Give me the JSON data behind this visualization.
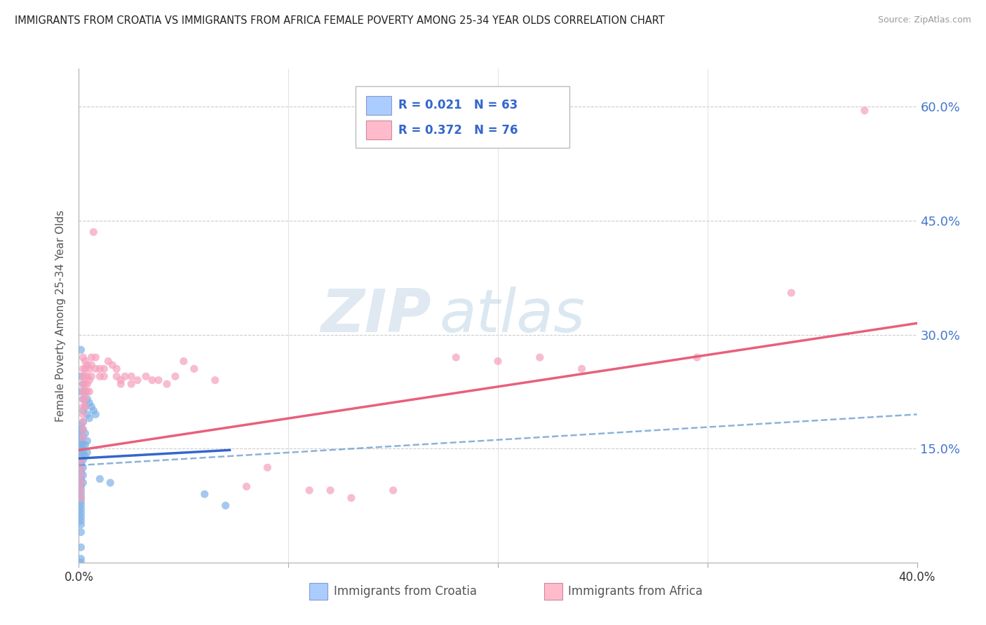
{
  "title": "IMMIGRANTS FROM CROATIA VS IMMIGRANTS FROM AFRICA FEMALE POVERTY AMONG 25-34 YEAR OLDS CORRELATION CHART",
  "source": "Source: ZipAtlas.com",
  "ylabel": "Female Poverty Among 25-34 Year Olds",
  "xlabel_croatia": "Immigrants from Croatia",
  "xlabel_africa": "Immigrants from Africa",
  "xlim": [
    0.0,
    0.4
  ],
  "ylim": [
    0.0,
    0.65
  ],
  "yticks": [
    0.0,
    0.15,
    0.3,
    0.45,
    0.6
  ],
  "ytick_labels": [
    "",
    "15.0%",
    "30.0%",
    "45.0%",
    "60.0%"
  ],
  "xticks": [
    0.0,
    0.1,
    0.2,
    0.3,
    0.4
  ],
  "croatia_color": "#7fb3e8",
  "africa_color": "#f5a0bc",
  "croatia_line_color": "#3366cc",
  "croatia_dash_color": "#6699cc",
  "africa_line_color": "#e8607a",
  "legend_croatia_color": "#aaccff",
  "legend_africa_color": "#ffbbcc",
  "watermark_zip": "ZIP",
  "watermark_atlas": "atlas",
  "croatia_line": [
    [
      0.0,
      0.137
    ],
    [
      0.072,
      0.148
    ]
  ],
  "croatia_dash_line": [
    [
      0.0,
      0.128
    ],
    [
      0.4,
      0.195
    ]
  ],
  "africa_line": [
    [
      0.0,
      0.148
    ],
    [
      0.4,
      0.315
    ]
  ],
  "croatia_scatter": [
    [
      0.001,
      0.28
    ],
    [
      0.001,
      0.245
    ],
    [
      0.001,
      0.225
    ],
    [
      0.002,
      0.235
    ],
    [
      0.002,
      0.215
    ],
    [
      0.002,
      0.2
    ],
    [
      0.003,
      0.225
    ],
    [
      0.003,
      0.205
    ],
    [
      0.004,
      0.215
    ],
    [
      0.004,
      0.195
    ],
    [
      0.005,
      0.21
    ],
    [
      0.005,
      0.19
    ],
    [
      0.006,
      0.205
    ],
    [
      0.007,
      0.2
    ],
    [
      0.008,
      0.195
    ],
    [
      0.001,
      0.18
    ],
    [
      0.001,
      0.175
    ],
    [
      0.001,
      0.17
    ],
    [
      0.001,
      0.165
    ],
    [
      0.001,
      0.16
    ],
    [
      0.001,
      0.155
    ],
    [
      0.001,
      0.15
    ],
    [
      0.001,
      0.145
    ],
    [
      0.001,
      0.14
    ],
    [
      0.001,
      0.135
    ],
    [
      0.001,
      0.13
    ],
    [
      0.001,
      0.125
    ],
    [
      0.001,
      0.12
    ],
    [
      0.001,
      0.115
    ],
    [
      0.001,
      0.11
    ],
    [
      0.001,
      0.105
    ],
    [
      0.001,
      0.1
    ],
    [
      0.001,
      0.095
    ],
    [
      0.001,
      0.09
    ],
    [
      0.001,
      0.085
    ],
    [
      0.001,
      0.08
    ],
    [
      0.001,
      0.075
    ],
    [
      0.001,
      0.07
    ],
    [
      0.001,
      0.065
    ],
    [
      0.001,
      0.06
    ],
    [
      0.001,
      0.055
    ],
    [
      0.001,
      0.05
    ],
    [
      0.001,
      0.04
    ],
    [
      0.001,
      0.02
    ],
    [
      0.001,
      0.005
    ],
    [
      0.001,
      0.0
    ],
    [
      0.002,
      0.185
    ],
    [
      0.002,
      0.175
    ],
    [
      0.002,
      0.165
    ],
    [
      0.002,
      0.155
    ],
    [
      0.002,
      0.145
    ],
    [
      0.002,
      0.135
    ],
    [
      0.002,
      0.125
    ],
    [
      0.002,
      0.115
    ],
    [
      0.002,
      0.105
    ],
    [
      0.003,
      0.17
    ],
    [
      0.003,
      0.155
    ],
    [
      0.003,
      0.14
    ],
    [
      0.004,
      0.16
    ],
    [
      0.004,
      0.145
    ],
    [
      0.01,
      0.11
    ],
    [
      0.015,
      0.105
    ],
    [
      0.06,
      0.09
    ],
    [
      0.07,
      0.075
    ]
  ],
  "africa_scatter": [
    [
      0.001,
      0.135
    ],
    [
      0.001,
      0.125
    ],
    [
      0.001,
      0.115
    ],
    [
      0.001,
      0.105
    ],
    [
      0.001,
      0.095
    ],
    [
      0.001,
      0.085
    ],
    [
      0.002,
      0.27
    ],
    [
      0.002,
      0.255
    ],
    [
      0.002,
      0.245
    ],
    [
      0.002,
      0.235
    ],
    [
      0.002,
      0.225
    ],
    [
      0.002,
      0.215
    ],
    [
      0.002,
      0.205
    ],
    [
      0.002,
      0.195
    ],
    [
      0.002,
      0.185
    ],
    [
      0.002,
      0.175
    ],
    [
      0.002,
      0.165
    ],
    [
      0.003,
      0.265
    ],
    [
      0.003,
      0.255
    ],
    [
      0.003,
      0.245
    ],
    [
      0.003,
      0.235
    ],
    [
      0.003,
      0.225
    ],
    [
      0.003,
      0.215
    ],
    [
      0.003,
      0.205
    ],
    [
      0.004,
      0.26
    ],
    [
      0.004,
      0.245
    ],
    [
      0.004,
      0.235
    ],
    [
      0.004,
      0.225
    ],
    [
      0.005,
      0.255
    ],
    [
      0.005,
      0.24
    ],
    [
      0.005,
      0.225
    ],
    [
      0.006,
      0.27
    ],
    [
      0.006,
      0.26
    ],
    [
      0.006,
      0.245
    ],
    [
      0.007,
      0.435
    ],
    [
      0.008,
      0.27
    ],
    [
      0.008,
      0.255
    ],
    [
      0.01,
      0.255
    ],
    [
      0.01,
      0.245
    ],
    [
      0.012,
      0.255
    ],
    [
      0.012,
      0.245
    ],
    [
      0.014,
      0.265
    ],
    [
      0.016,
      0.26
    ],
    [
      0.018,
      0.255
    ],
    [
      0.018,
      0.245
    ],
    [
      0.02,
      0.24
    ],
    [
      0.02,
      0.235
    ],
    [
      0.022,
      0.245
    ],
    [
      0.025,
      0.245
    ],
    [
      0.025,
      0.235
    ],
    [
      0.028,
      0.24
    ],
    [
      0.032,
      0.245
    ],
    [
      0.035,
      0.24
    ],
    [
      0.038,
      0.24
    ],
    [
      0.042,
      0.235
    ],
    [
      0.046,
      0.245
    ],
    [
      0.05,
      0.265
    ],
    [
      0.055,
      0.255
    ],
    [
      0.065,
      0.24
    ],
    [
      0.08,
      0.1
    ],
    [
      0.09,
      0.125
    ],
    [
      0.11,
      0.095
    ],
    [
      0.12,
      0.095
    ],
    [
      0.13,
      0.085
    ],
    [
      0.15,
      0.095
    ],
    [
      0.18,
      0.27
    ],
    [
      0.2,
      0.265
    ],
    [
      0.22,
      0.27
    ],
    [
      0.24,
      0.255
    ],
    [
      0.295,
      0.27
    ],
    [
      0.34,
      0.355
    ],
    [
      0.375,
      0.595
    ]
  ]
}
